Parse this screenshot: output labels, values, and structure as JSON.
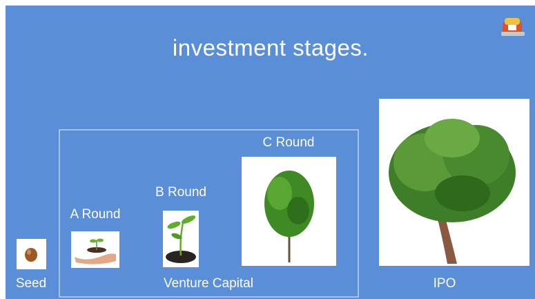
{
  "title": "investment stages.",
  "stages": [
    {
      "label": "Seed"
    },
    {
      "label": "A Round"
    },
    {
      "label": "B Round"
    },
    {
      "label": "C Round"
    },
    {
      "label": "IPO"
    }
  ],
  "group": {
    "label": "Venture Capital"
  }
}
